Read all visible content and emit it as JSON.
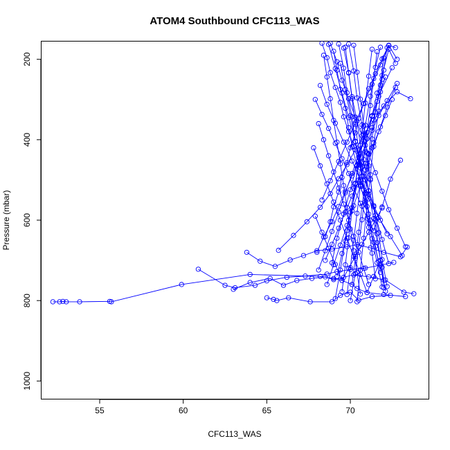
{
  "chart_data": {
    "type": "line",
    "title": "ATOM4 Southbound CFC113_WAS",
    "xlabel": "CFC113_WAS",
    "ylabel": "Pressure (mbar)",
    "xlim": [
      51.5,
      74.7
    ],
    "ylim": [
      1045,
      155
    ],
    "y_reversed": true,
    "x_ticks": [
      55,
      60,
      65,
      70
    ],
    "y_ticks": [
      200,
      400,
      600,
      800,
      1000
    ],
    "grid": false,
    "series_color": "#0000ff",
    "marker": "open-circle",
    "series": [
      {
        "x": [
          52.2,
          52.6,
          52.8,
          53.0,
          53.8,
          55.6,
          55.7,
          59.9,
          64.0,
          68.2,
          69.0,
          69.5,
          70.1,
          70.4,
          71.0,
          72.0,
          73.3
        ],
        "y": [
          803,
          803,
          802,
          803,
          803,
          802,
          803,
          760,
          735,
          740,
          745,
          750,
          760,
          770,
          780,
          785,
          790
        ]
      },
      {
        "x": [
          60.9,
          62.5,
          63.1,
          64.3,
          65.0,
          66.2,
          67.3,
          68.6,
          69.2,
          70.0,
          70.9,
          71.8,
          72.6
        ],
        "y": [
          722,
          762,
          768,
          762,
          751,
          742,
          739,
          734,
          728,
          723,
          719,
          712,
          705
        ]
      },
      {
        "x": [
          63.0,
          64.0,
          65.2,
          66.0,
          66.8,
          67.7,
          68.5,
          69.0,
          69.6,
          70.2,
          71.1,
          72.1,
          73.2,
          73.8
        ],
        "y": [
          772,
          755,
          745,
          762,
          750,
          745,
          741,
          748,
          742,
          736,
          741,
          749,
          779,
          783
        ]
      },
      {
        "x": [
          63.8,
          64.6,
          65.5,
          66.4,
          67.2,
          68.0,
          68.9,
          69.8,
          70.4,
          71.2,
          72.0,
          73.0,
          73.4
        ],
        "y": [
          680,
          702,
          715,
          699,
          688,
          676,
          672,
          666,
          661,
          669,
          680,
          691,
          667
        ]
      },
      {
        "x": [
          65.0,
          65.4,
          65.6,
          66.3,
          67.6,
          68.9,
          69.4,
          70.0,
          70.5,
          71.3,
          72.4
        ],
        "y": [
          793,
          797,
          800,
          793,
          803,
          803,
          787,
          779,
          799,
          790,
          787
        ]
      },
      {
        "x": [
          65.7,
          66.6,
          67.4,
          68.2,
          68.8,
          69.3,
          69.8,
          70.3,
          70.8,
          71.4,
          72.0,
          72.8,
          73.6
        ],
        "y": [
          675,
          638,
          604,
          568,
          534,
          497,
          462,
          425,
          388,
          351,
          316,
          281,
          298
        ]
      },
      {
        "x": [
          67.9,
          68.3,
          68.7,
          69.1,
          69.5,
          69.9,
          70.2,
          70.6,
          71.0,
          71.4,
          71.9,
          72.4,
          73.0
        ],
        "y": [
          300,
          337,
          372,
          409,
          447,
          484,
          521,
          558,
          595,
          626,
          567,
          498,
          451
        ]
      },
      {
        "x": [
          68.0,
          68.4,
          68.9,
          69.3,
          69.7,
          70.1,
          70.5,
          70.9,
          71.3,
          71.7,
          72.2,
          72.8
        ],
        "y": [
          680,
          642,
          604,
          566,
          528,
          490,
          452,
          414,
          377,
          340,
          303,
          260
        ]
      },
      {
        "x": [
          68.3,
          68.6,
          68.8,
          69.1,
          69.4,
          69.6,
          69.9,
          70.2,
          70.5,
          70.8,
          71.1,
          71.4,
          71.8,
          72.2
        ],
        "y": [
          160,
          196,
          233,
          270,
          307,
          343,
          380,
          417,
          454,
          491,
          527,
          564,
          600,
          634
        ]
      },
      {
        "x": [
          68.5,
          68.8,
          69.0,
          69.3,
          69.5,
          69.8,
          70.0,
          70.3,
          70.5,
          70.8,
          71.1,
          71.5,
          71.9,
          72.3,
          72.7
        ],
        "y": [
          641,
          604,
          567,
          530,
          494,
          457,
          420,
          383,
          347,
          310,
          273,
          236,
          199,
          165,
          171
        ]
      },
      {
        "x": [
          68.7,
          69.1,
          69.5,
          69.9,
          70.3,
          70.7,
          71.1,
          71.5,
          71.9,
          72.3
        ],
        "y": [
          163,
          223,
          284,
          345,
          405,
          466,
          527,
          588,
          648,
          708
        ]
      },
      {
        "x": [
          68.9,
          69.2,
          69.6,
          70.0,
          70.4,
          70.8,
          71.3,
          71.8,
          72.5
        ],
        "y": [
          706,
          645,
          585,
          524,
          463,
          403,
          342,
          281,
          221
        ]
      },
      {
        "x": [
          69.0,
          69.2,
          69.4,
          69.7,
          69.9,
          70.1,
          70.4,
          70.6,
          70.9,
          71.1,
          71.4,
          71.7,
          72.0
        ],
        "y": [
          180,
          227,
          275,
          322,
          370,
          417,
          465,
          512,
          560,
          607,
          655,
          702,
          749
        ]
      },
      {
        "x": [
          69.1,
          69.4,
          69.7,
          70.0,
          70.3,
          70.6,
          70.9,
          71.2,
          71.5,
          71.8
        ],
        "y": [
          795,
          724,
          652,
          580,
          508,
          436,
          364,
          292,
          220,
          170
        ]
      },
      {
        "x": [
          69.3,
          69.6,
          69.8,
          70.1,
          70.3,
          70.6,
          70.8,
          71.1,
          71.3,
          71.6,
          71.9
        ],
        "y": [
          162,
          222,
          283,
          343,
          404,
          464,
          525,
          585,
          646,
          706,
          766
        ]
      },
      {
        "x": [
          69.5,
          69.7,
          69.9,
          70.1,
          70.3,
          70.5,
          70.7,
          70.9,
          71.1,
          71.3
        ],
        "y": [
          778,
          711,
          644,
          577,
          510,
          443,
          376,
          309,
          242,
          175
        ]
      },
      {
        "x": [
          69.6,
          69.9,
          70.1,
          70.4,
          70.6,
          70.9,
          71.1,
          71.4,
          71.6,
          71.9,
          72.1
        ],
        "y": [
          172,
          233,
          293,
          354,
          414,
          475,
          535,
          596,
          656,
          717,
          777
        ]
      },
      {
        "x": [
          69.8,
          70.0,
          70.2,
          70.4,
          70.6,
          70.8,
          71.0,
          71.2,
          71.4,
          71.6
        ],
        "y": [
          785,
          718,
          650,
          583,
          516,
          449,
          382,
          315,
          248,
          181
        ]
      },
      {
        "x": [
          69.9,
          70.2,
          70.4,
          70.7,
          70.9,
          71.2,
          71.4,
          71.7,
          71.9,
          72.2
        ],
        "y": [
          162,
          229,
          296,
          363,
          430,
          497,
          564,
          631,
          698,
          765
        ]
      },
      {
        "x": [
          70.0,
          70.3,
          70.5,
          70.7,
          70.9,
          71.1,
          71.3,
          71.5,
          71.8,
          72.0
        ],
        "y": [
          800,
          733,
          666,
          599,
          532,
          465,
          398,
          331,
          264,
          197
        ]
      },
      {
        "x": [
          70.2,
          70.4,
          70.6,
          70.8,
          71.0,
          71.2,
          71.4,
          71.6,
          71.8,
          72.0
        ],
        "y": [
          165,
          232,
          299,
          366,
          433,
          500,
          567,
          634,
          701,
          768
        ]
      },
      {
        "x": [
          70.4,
          70.6,
          70.8,
          71.0,
          71.2,
          71.4,
          71.7,
          71.9,
          72.2
        ],
        "y": [
          803,
          724,
          645,
          566,
          487,
          408,
          329,
          250,
          171
        ]
      },
      {
        "x": [
          68.4,
          68.6,
          68.8,
          69.0,
          69.2,
          69.4,
          69.6,
          69.8,
          70.0,
          70.2,
          70.4,
          70.6
        ],
        "y": [
          190,
          244,
          298,
          352,
          406,
          460,
          514,
          568,
          622,
          676,
          730,
          784
        ]
      },
      {
        "x": [
          68.1,
          68.5,
          68.9,
          69.3,
          69.7,
          70.1,
          70.5,
          70.9,
          71.3,
          71.7,
          72.1
        ],
        "y": [
          724,
          676,
          628,
          580,
          532,
          484,
          436,
          388,
          340,
          292,
          244
        ]
      },
      {
        "x": [
          68.2,
          68.6,
          69.1,
          69.6,
          70.1,
          70.6,
          71.1,
          71.7,
          72.4,
          73.1
        ],
        "y": [
          265,
          312,
          359,
          406,
          453,
          500,
          547,
          594,
          641,
          688
        ]
      },
      {
        "x": [
          68.6,
          69.0,
          69.4,
          69.8,
          70.2,
          70.6,
          71.0,
          71.4,
          71.8,
          72.2,
          72.7
        ],
        "y": [
          760,
          711,
          662,
          613,
          564,
          515,
          466,
          417,
          368,
          319,
          270
        ]
      },
      {
        "x": [
          67.8,
          68.2,
          68.6,
          69.0,
          69.4,
          69.8,
          70.2,
          70.6,
          71.0,
          71.4,
          71.8
        ],
        "y": [
          420,
          465,
          510,
          555,
          600,
          645,
          690,
          735,
          780,
          740,
          700
        ]
      },
      {
        "x": [
          68.8,
          69.2,
          69.5,
          69.9,
          70.3,
          70.7,
          71.1,
          71.5,
          71.9,
          72.3,
          72.8,
          73.3
        ],
        "y": [
          160,
          206,
          252,
          298,
          344,
          390,
          436,
          482,
          528,
          574,
          620,
          666
        ]
      },
      {
        "x": [
          69.2,
          69.5,
          69.8,
          70.1,
          70.4,
          70.7,
          71.0,
          71.3,
          71.6,
          72.0
        ],
        "y": [
          740,
          683,
          626,
          569,
          512,
          455,
          398,
          341,
          284,
          227
        ]
      },
      {
        "x": [
          69.4,
          69.7,
          70.0,
          70.3,
          70.6,
          70.9,
          71.2,
          71.5,
          71.8
        ],
        "y": [
          210,
          275,
          340,
          405,
          470,
          535,
          600,
          665,
          730
        ]
      },
      {
        "x": [
          68.3,
          68.8,
          69.3,
          69.8,
          70.3,
          70.8,
          71.3,
          71.8,
          72.3,
          72.8
        ],
        "y": [
          550,
          502,
          454,
          406,
          358,
          310,
          262,
          214,
          166,
          200
        ]
      },
      {
        "x": [
          67.9,
          68.3,
          68.7,
          69.1,
          69.5,
          69.9,
          70.3,
          70.7,
          71.1,
          71.5,
          71.9
        ],
        "y": [
          590,
          630,
          670,
          710,
          750,
          720,
          690,
          660,
          630,
          600,
          570
        ]
      },
      {
        "x": [
          69.7,
          69.9,
          70.1,
          70.3,
          70.5,
          70.7,
          70.9,
          71.1,
          71.3,
          71.5
        ],
        "y": [
          170,
          234,
          298,
          362,
          426,
          490,
          554,
          618,
          682,
          746
        ]
      },
      {
        "x": [
          70.1,
          70.3,
          70.5,
          70.7,
          70.9,
          71.1,
          71.3,
          71.6,
          71.9,
          72.3,
          72.7
        ],
        "y": [
          760,
          695,
          630,
          565,
          500,
          435,
          370,
          305,
          240,
          175,
          210
        ]
      },
      {
        "x": [
          68.1,
          68.4,
          68.7,
          69.0,
          69.3,
          69.6,
          69.9,
          70.2,
          70.5,
          70.8,
          71.1
        ],
        "y": [
          360,
          400,
          440,
          480,
          520,
          560,
          600,
          640,
          680,
          720,
          760
        ]
      },
      {
        "x": [
          68.5,
          68.9,
          69.3,
          69.7,
          70.1,
          70.5,
          70.9,
          71.3,
          71.7,
          72.1,
          72.5
        ],
        "y": [
          700,
          660,
          620,
          580,
          540,
          500,
          460,
          420,
          380,
          340,
          300
        ]
      }
    ]
  }
}
